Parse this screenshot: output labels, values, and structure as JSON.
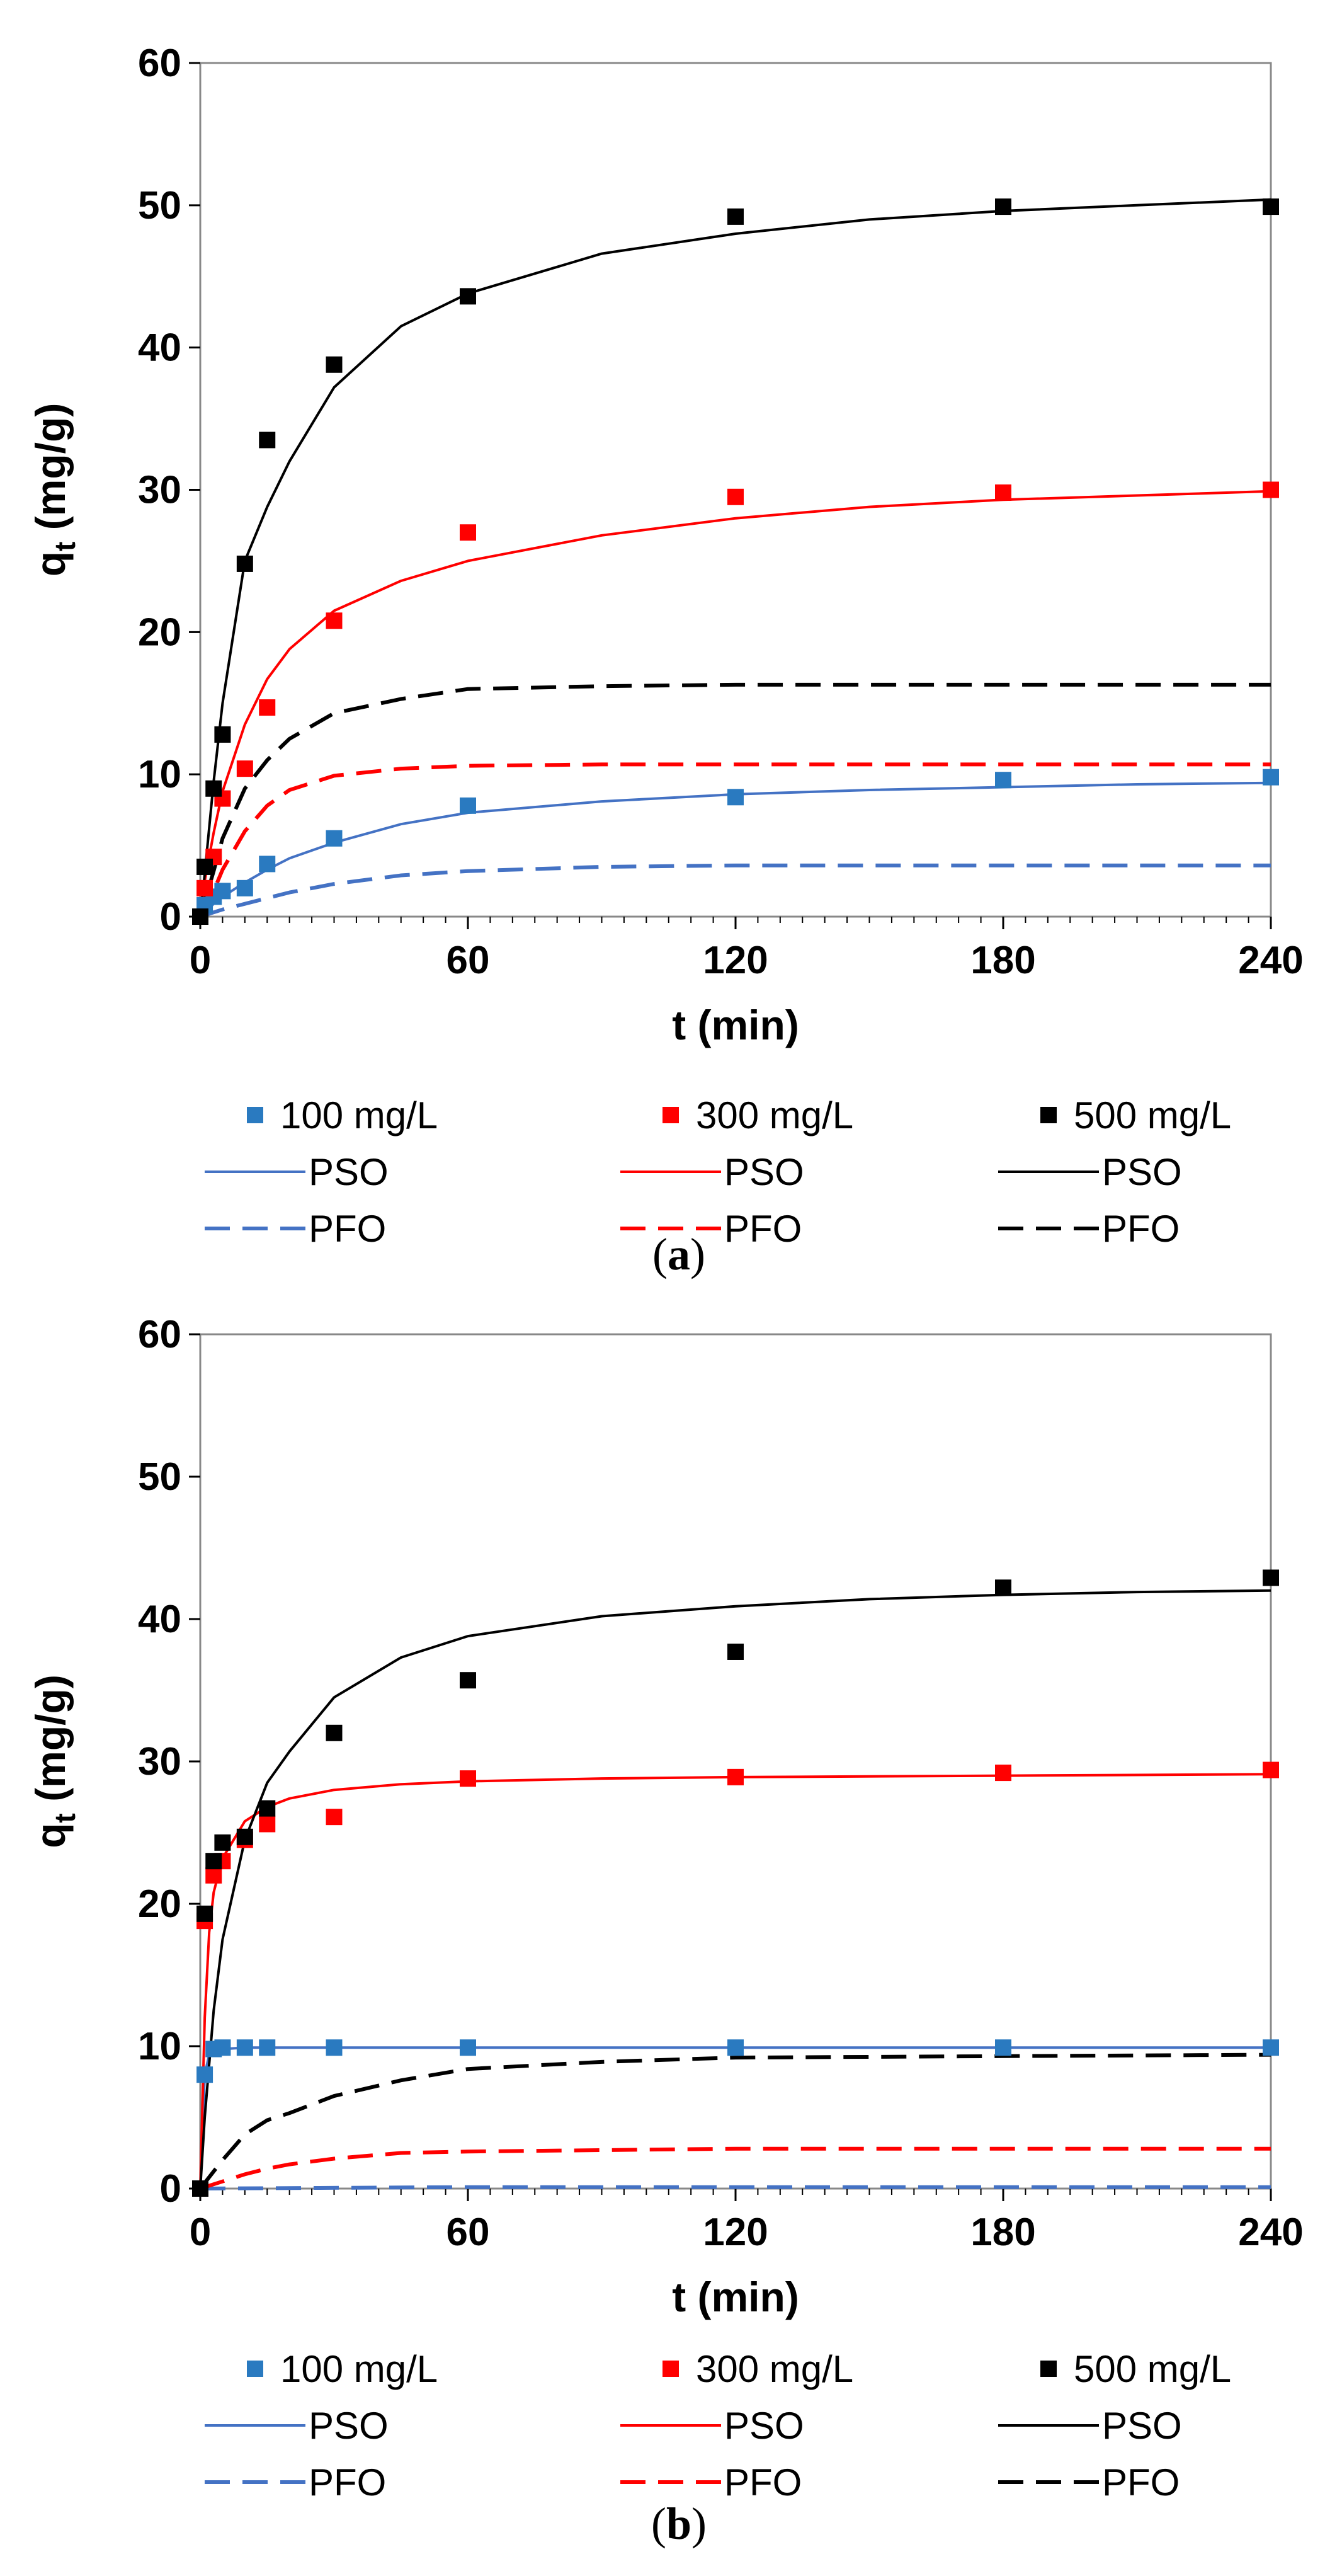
{
  "chart_data": [
    {
      "type": "scatter",
      "panel": "a",
      "caption_label": "a",
      "xlabel": "t (min)",
      "ylabel_main": "q",
      "ylabel_sub": "t",
      "ylabel_unit": " (mg/g)",
      "xlim": [
        0,
        240
      ],
      "ylim": [
        0,
        60
      ],
      "xticks": [
        0,
        60,
        120,
        180,
        240
      ],
      "yticks": [
        0,
        10,
        20,
        30,
        40,
        50,
        60
      ],
      "series": [
        {
          "name": "100 mg/L",
          "kind": "points",
          "color": "#2a7ac0",
          "x": [
            0,
            1,
            3,
            5,
            10,
            15,
            30,
            60,
            120,
            180,
            240
          ],
          "y": [
            0,
            0.8,
            1.4,
            1.8,
            2.0,
            3.7,
            5.5,
            7.8,
            8.4,
            9.6,
            9.8
          ]
        },
        {
          "name": "300 mg/L",
          "kind": "points",
          "color": "#ff0000",
          "x": [
            0,
            1,
            3,
            5,
            10,
            15,
            30,
            60,
            120,
            180,
            240
          ],
          "y": [
            0,
            2.0,
            4.2,
            8.3,
            10.4,
            14.7,
            20.8,
            27.0,
            29.5,
            29.8,
            30.0
          ]
        },
        {
          "name": "500 mg/L",
          "kind": "points",
          "color": "#000000",
          "x": [
            0,
            1,
            3,
            5,
            10,
            15,
            30,
            60,
            120,
            180,
            240
          ],
          "y": [
            0,
            3.5,
            9.0,
            12.8,
            24.8,
            33.5,
            38.8,
            43.6,
            49.2,
            49.9,
            49.9
          ]
        },
        {
          "name": "PSO",
          "kind": "line",
          "dash": "solid",
          "color": "#4472c4",
          "x": [
            0,
            1,
            3,
            5,
            10,
            15,
            20,
            30,
            45,
            60,
            90,
            120,
            150,
            180,
            210,
            240
          ],
          "y": [
            0,
            0.3,
            0.9,
            1.4,
            2.4,
            3.3,
            4.1,
            5.2,
            6.5,
            7.3,
            8.1,
            8.6,
            8.9,
            9.1,
            9.3,
            9.4
          ]
        },
        {
          "name": "PSO",
          "kind": "line",
          "dash": "solid",
          "color": "#ff0000",
          "x": [
            0,
            1,
            3,
            5,
            10,
            15,
            20,
            30,
            45,
            60,
            90,
            120,
            150,
            180,
            210,
            240
          ],
          "y": [
            0,
            2.5,
            5.9,
            8.8,
            13.5,
            16.7,
            18.8,
            21.5,
            23.6,
            25.0,
            26.8,
            28.0,
            28.8,
            29.3,
            29.6,
            29.9
          ]
        },
        {
          "name": "PSO",
          "kind": "line",
          "dash": "solid",
          "color": "#000000",
          "x": [
            0,
            1,
            3,
            5,
            10,
            15,
            20,
            30,
            45,
            60,
            90,
            120,
            150,
            180,
            210,
            240
          ],
          "y": [
            0,
            3.0,
            9.5,
            15.0,
            25.0,
            28.8,
            32.0,
            37.2,
            41.5,
            43.8,
            46.6,
            48.0,
            49.0,
            49.6,
            50.0,
            50.4
          ]
        },
        {
          "name": "PFO",
          "kind": "line",
          "dash": "dashed",
          "color": "#4472c4",
          "x": [
            0,
            5,
            10,
            15,
            20,
            30,
            45,
            60,
            90,
            120,
            180,
            240
          ],
          "y": [
            0,
            0.5,
            0.9,
            1.3,
            1.7,
            2.3,
            2.9,
            3.2,
            3.5,
            3.6,
            3.6,
            3.6
          ]
        },
        {
          "name": "PFO",
          "kind": "line",
          "dash": "dashed",
          "color": "#ff0000",
          "x": [
            0,
            3,
            5,
            10,
            15,
            20,
            30,
            45,
            60,
            90,
            120,
            180,
            240
          ],
          "y": [
            0,
            1.8,
            3.3,
            6.0,
            7.8,
            8.9,
            9.9,
            10.4,
            10.6,
            10.7,
            10.7,
            10.7,
            10.7
          ]
        },
        {
          "name": "PFO",
          "kind": "line",
          "dash": "dashed",
          "color": "#000000",
          "x": [
            0,
            3,
            5,
            10,
            15,
            20,
            30,
            45,
            60,
            90,
            120,
            180,
            240
          ],
          "y": [
            0,
            3.2,
            5.5,
            9.0,
            11.0,
            12.5,
            14.3,
            15.3,
            16.0,
            16.2,
            16.3,
            16.3,
            16.3
          ]
        }
      ]
    },
    {
      "type": "scatter",
      "panel": "b",
      "caption_label": "b",
      "xlabel": "t (min)",
      "ylabel_main": "q",
      "ylabel_sub": "t",
      "ylabel_unit": " (mg/g)",
      "xlim": [
        0,
        240
      ],
      "ylim": [
        0,
        60
      ],
      "xticks": [
        0,
        60,
        120,
        180,
        240
      ],
      "yticks": [
        0,
        10,
        20,
        30,
        40,
        50,
        60
      ],
      "series": [
        {
          "name": "100 mg/L",
          "kind": "points",
          "color": "#2a7ac0",
          "x": [
            0,
            1,
            3,
            5,
            10,
            15,
            30,
            60,
            120,
            180,
            240
          ],
          "y": [
            0,
            8.0,
            9.8,
            9.9,
            9.9,
            9.9,
            9.9,
            9.9,
            9.9,
            9.9,
            9.9
          ]
        },
        {
          "name": "300 mg/L",
          "kind": "points",
          "color": "#ff0000",
          "x": [
            0,
            1,
            3,
            5,
            10,
            15,
            30,
            60,
            120,
            180,
            240
          ],
          "y": [
            0,
            18.8,
            22.0,
            23.0,
            24.5,
            25.6,
            26.1,
            28.8,
            28.9,
            29.2,
            29.4
          ]
        },
        {
          "name": "500 mg/L",
          "kind": "points",
          "color": "#000000",
          "x": [
            0,
            1,
            3,
            5,
            10,
            15,
            30,
            60,
            120,
            180,
            240
          ],
          "y": [
            0,
            19.3,
            23.0,
            24.3,
            24.7,
            26.7,
            32.0,
            35.7,
            37.7,
            42.2,
            42.9
          ]
        },
        {
          "name": "PSO",
          "kind": "line",
          "dash": "solid",
          "color": "#4472c4",
          "x": [
            0,
            1,
            2,
            3,
            5,
            10,
            30,
            60,
            120,
            180,
            240
          ],
          "y": [
            0,
            8.0,
            9.4,
            9.7,
            9.8,
            9.9,
            9.9,
            9.9,
            9.9,
            9.9,
            9.9
          ]
        },
        {
          "name": "PSO",
          "kind": "line",
          "dash": "solid",
          "color": "#ff0000",
          "x": [
            0,
            1,
            2,
            3,
            5,
            10,
            15,
            20,
            30,
            45,
            60,
            90,
            120,
            180,
            240
          ],
          "y": [
            0,
            12.0,
            18.0,
            20.8,
            23.2,
            25.8,
            26.8,
            27.4,
            28.0,
            28.4,
            28.6,
            28.8,
            28.9,
            29.0,
            29.1
          ]
        },
        {
          "name": "PSO",
          "kind": "line",
          "dash": "solid",
          "color": "#000000",
          "x": [
            0,
            1,
            3,
            5,
            10,
            15,
            20,
            30,
            45,
            60,
            90,
            120,
            150,
            180,
            210,
            240
          ],
          "y": [
            0,
            5.0,
            12.5,
            17.5,
            24.5,
            28.5,
            30.7,
            34.5,
            37.3,
            38.8,
            40.2,
            40.9,
            41.4,
            41.7,
            41.9,
            42.0
          ]
        },
        {
          "name": "PFO",
          "kind": "line",
          "dash": "dashed",
          "color": "#4472c4",
          "x": [
            0,
            60,
            120,
            180,
            240
          ],
          "y": [
            0,
            0.1,
            0.1,
            0.1,
            0.1
          ]
        },
        {
          "name": "PFO",
          "kind": "line",
          "dash": "dashed",
          "color": "#ff0000",
          "x": [
            0,
            5,
            10,
            15,
            20,
            30,
            45,
            60,
            90,
            120,
            180,
            240
          ],
          "y": [
            0,
            0.5,
            1.0,
            1.4,
            1.7,
            2.1,
            2.5,
            2.6,
            2.7,
            2.8,
            2.8,
            2.8
          ]
        },
        {
          "name": "PFO",
          "kind": "line",
          "dash": "dashed",
          "color": "#000000",
          "x": [
            0,
            5,
            10,
            15,
            20,
            30,
            45,
            60,
            90,
            120,
            180,
            240
          ],
          "y": [
            0,
            2.0,
            3.8,
            4.8,
            5.3,
            6.5,
            7.6,
            8.4,
            8.9,
            9.2,
            9.3,
            9.4
          ]
        }
      ]
    }
  ]
}
